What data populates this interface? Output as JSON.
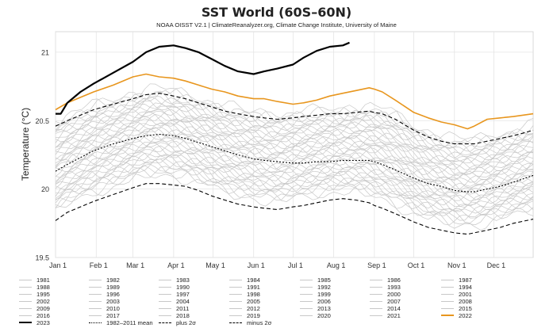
{
  "chart_data": {
    "type": "line",
    "title": "SST World (60S–60N)",
    "subtitle": "NOAA OISST V2.1 | ClimateReanalyzer.org, Climate Change Institute, University of Maine",
    "ylabel": "Temperature (°C)",
    "xlabel": "",
    "ylim": [
      19.5,
      21.15
    ],
    "xlim": [
      1,
      365
    ],
    "y_ticks": [
      19.5,
      20,
      20.5,
      21
    ],
    "y_tick_labels": [
      "19.5",
      "20",
      "20.5",
      "21"
    ],
    "x_ticks": [
      {
        "label": "Jan 1",
        "day": 1
      },
      {
        "label": "Feb 1",
        "day": 32
      },
      {
        "label": "Mar 1",
        "day": 60
      },
      {
        "label": "Apr 1",
        "day": 91
      },
      {
        "label": "May 1",
        "day": 121
      },
      {
        "label": "Jun 1",
        "day": 152
      },
      {
        "label": "Jul 1",
        "day": 182
      },
      {
        "label": "Aug 1",
        "day": 213
      },
      {
        "label": "Sep 1",
        "day": 244
      },
      {
        "label": "Oct 1",
        "day": 274
      },
      {
        "label": "Nov 1",
        "day": 305
      },
      {
        "label": "Dec 1",
        "day": 335
      }
    ],
    "grid": true,
    "legend_position": "bottom",
    "series": [
      {
        "name": "2023",
        "color": "#000000",
        "style": "solid-bold",
        "x": [
          1,
          5,
          10,
          20,
          30,
          45,
          60,
          70,
          80,
          91,
          100,
          110,
          120,
          130,
          140,
          152,
          160,
          170,
          182,
          190,
          200,
          210,
          220,
          225
        ],
        "y": [
          20.55,
          20.55,
          20.63,
          20.71,
          20.77,
          20.85,
          20.93,
          21.0,
          21.04,
          21.05,
          21.03,
          21.0,
          20.95,
          20.9,
          20.86,
          20.84,
          20.86,
          20.88,
          20.91,
          20.96,
          21.01,
          21.04,
          21.05,
          21.07
        ]
      },
      {
        "name": "2022",
        "color": "#e8961e",
        "style": "solid",
        "x": [
          1,
          10,
          20,
          30,
          45,
          60,
          70,
          80,
          91,
          100,
          110,
          120,
          130,
          140,
          152,
          160,
          170,
          182,
          190,
          200,
          210,
          220,
          230,
          240,
          244,
          250,
          260,
          274,
          285,
          295,
          305,
          315,
          320,
          330,
          340,
          350,
          365
        ],
        "y": [
          20.58,
          20.63,
          20.67,
          20.71,
          20.76,
          20.82,
          20.84,
          20.82,
          20.81,
          20.79,
          20.76,
          20.73,
          20.71,
          20.68,
          20.66,
          20.66,
          20.64,
          20.62,
          20.63,
          20.65,
          20.68,
          20.7,
          20.72,
          20.74,
          20.73,
          20.71,
          20.65,
          20.56,
          20.52,
          20.49,
          20.47,
          20.44,
          20.46,
          20.51,
          20.52,
          20.53,
          20.55
        ]
      },
      {
        "name": "1982–2011 mean",
        "color": "#000000",
        "style": "dotted",
        "x": [
          1,
          10,
          20,
          30,
          45,
          60,
          70,
          80,
          91,
          100,
          110,
          120,
          130,
          140,
          152,
          160,
          170,
          182,
          190,
          200,
          210,
          220,
          230,
          240,
          244,
          250,
          260,
          274,
          285,
          295,
          305,
          315,
          320,
          330,
          340,
          350,
          365
        ],
        "y": [
          20.13,
          20.18,
          20.23,
          20.28,
          20.33,
          20.37,
          20.39,
          20.4,
          20.39,
          20.37,
          20.34,
          20.31,
          20.28,
          20.25,
          20.22,
          20.21,
          20.2,
          20.19,
          20.19,
          20.2,
          20.2,
          20.21,
          20.21,
          20.21,
          20.2,
          20.18,
          20.14,
          20.08,
          20.04,
          20.02,
          19.99,
          19.98,
          19.98,
          20.0,
          20.02,
          20.05,
          20.1
        ]
      },
      {
        "name": "plus 2σ",
        "color": "#000000",
        "style": "dashed",
        "x": [
          1,
          10,
          20,
          30,
          45,
          60,
          70,
          80,
          91,
          100,
          110,
          120,
          130,
          140,
          152,
          160,
          170,
          182,
          190,
          200,
          210,
          220,
          230,
          240,
          244,
          250,
          260,
          274,
          285,
          295,
          305,
          315,
          320,
          330,
          340,
          350,
          365
        ],
        "y": [
          20.46,
          20.5,
          20.54,
          20.58,
          20.62,
          20.66,
          20.69,
          20.7,
          20.68,
          20.66,
          20.63,
          20.6,
          20.57,
          20.55,
          20.53,
          20.52,
          20.51,
          20.52,
          20.53,
          20.54,
          20.55,
          20.55,
          20.56,
          20.57,
          20.56,
          20.55,
          20.51,
          20.43,
          20.38,
          20.35,
          20.33,
          20.33,
          20.33,
          20.35,
          20.37,
          20.39,
          20.43
        ]
      },
      {
        "name": "minus 2σ",
        "color": "#000000",
        "style": "dashed",
        "x": [
          1,
          10,
          20,
          30,
          45,
          60,
          70,
          80,
          91,
          100,
          110,
          120,
          130,
          140,
          152,
          160,
          170,
          182,
          190,
          200,
          210,
          220,
          230,
          240,
          244,
          250,
          260,
          274,
          285,
          295,
          305,
          315,
          320,
          330,
          340,
          350,
          365
        ],
        "y": [
          19.77,
          19.83,
          19.87,
          19.91,
          19.96,
          20.01,
          20.04,
          20.04,
          20.03,
          20.02,
          19.99,
          19.95,
          19.92,
          19.89,
          19.87,
          19.86,
          19.85,
          19.87,
          19.88,
          19.9,
          19.92,
          19.93,
          19.92,
          19.9,
          19.88,
          19.86,
          19.82,
          19.76,
          19.72,
          19.7,
          19.68,
          19.67,
          19.68,
          19.7,
          19.72,
          19.75,
          19.78
        ]
      }
    ],
    "background_years": [
      1981,
      1982,
      1983,
      1984,
      1985,
      1986,
      1987,
      1988,
      1989,
      1990,
      1991,
      1992,
      1993,
      1994,
      1995,
      1996,
      1997,
      1998,
      1999,
      2000,
      2001,
      2002,
      2003,
      2004,
      2005,
      2006,
      2007,
      2008,
      2009,
      2010,
      2011,
      2012,
      2013,
      2014,
      2015,
      2016,
      2017,
      2018,
      2019,
      2020,
      2021
    ],
    "background_color": "#c8c8c8",
    "legend": [
      [
        "1981",
        "1982",
        "1983",
        "1984",
        "1985",
        "1986",
        "1987"
      ],
      [
        "1988",
        "1989",
        "1990",
        "1991",
        "1992",
        "1993",
        "1994"
      ],
      [
        "1995",
        "1996",
        "1997",
        "1998",
        "1999",
        "2000",
        "2001"
      ],
      [
        "2002",
        "2003",
        "2004",
        "2005",
        "2006",
        "2007",
        "2008"
      ],
      [
        "2009",
        "2010",
        "2011",
        "2012",
        "2013",
        "2014",
        "2015"
      ],
      [
        "2016",
        "2017",
        "2018",
        "2019",
        "2020",
        "2021",
        "2022"
      ],
      [
        "2023",
        "1982–2011 mean",
        "plus 2σ",
        "minus 2σ"
      ]
    ]
  }
}
